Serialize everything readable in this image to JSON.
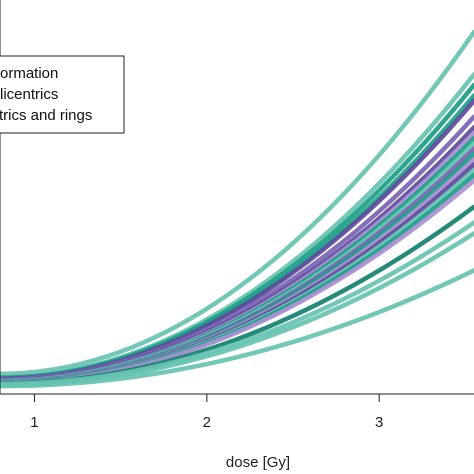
{
  "chart_data": {
    "type": "line",
    "xlabel": "dose [Gy]",
    "ylabel": "",
    "title": "",
    "xlim": [
      0.8,
      3.55
    ],
    "ylim": [
      0.95,
      2.55
    ],
    "x_ticks": [
      1,
      2,
      3
    ],
    "x_tick_labels": [
      "1",
      "2",
      "3"
    ],
    "grid": false,
    "legend": {
      "placement": "top-left",
      "entries": [
        {
          "label": "ormation",
          "color": "#26a69a"
        },
        {
          "label": "licentrics",
          "color": "#6a4fa0"
        },
        {
          "label": "trics and rings",
          "color": "#7fd1c3"
        }
      ]
    },
    "colors": {
      "teal_light": "#66c2b1",
      "teal": "#1a9e86",
      "teal_dark": "#12806e",
      "purple": "#5e4a9c",
      "purple_mid": "#7a63b4",
      "lavender": "#a98fd3"
    },
    "series": [
      {
        "color": "#66c2b1",
        "points": [
          [
            0.8,
            1.032
          ],
          [
            3.55,
            2.42
          ]
        ]
      },
      {
        "color": "#66c2b1",
        "points": [
          [
            0.8,
            1.019
          ],
          [
            3.55,
            2.248
          ]
        ]
      },
      {
        "color": "#1a9e86",
        "points": [
          [
            0.8,
            1.016
          ],
          [
            3.55,
            2.205
          ]
        ]
      },
      {
        "color": "#1a9e86",
        "points": [
          [
            0.8,
            1.014
          ],
          [
            3.55,
            2.162
          ]
        ]
      },
      {
        "color": "#5e4a9c",
        "points": [
          [
            0.8,
            1.012
          ],
          [
            3.55,
            2.14
          ]
        ]
      },
      {
        "color": "#7a63b4",
        "points": [
          [
            0.8,
            1.01
          ],
          [
            3.55,
            2.076
          ]
        ]
      },
      {
        "color": "#5e4a9c",
        "points": [
          [
            0.8,
            1.006
          ],
          [
            3.55,
            2.033
          ]
        ]
      },
      {
        "color": "#a98fd3",
        "points": [
          [
            0.8,
            1.004
          ],
          [
            3.55,
            2.011
          ]
        ]
      },
      {
        "color": "#1a9e86",
        "points": [
          [
            0.8,
            1.003
          ],
          [
            3.55,
            1.989
          ]
        ]
      },
      {
        "color": "#66c2b1",
        "points": [
          [
            0.8,
            1.002
          ],
          [
            3.55,
            1.968
          ]
        ]
      },
      {
        "color": "#7a63b4",
        "points": [
          [
            0.8,
            1.0
          ],
          [
            3.55,
            1.946
          ]
        ]
      },
      {
        "color": "#1a9e86",
        "points": [
          [
            0.8,
            0.999
          ],
          [
            3.55,
            1.925
          ]
        ]
      },
      {
        "color": "#a98fd3",
        "points": [
          [
            0.8,
            0.998
          ],
          [
            3.55,
            1.903
          ]
        ]
      },
      {
        "color": "#5e4a9c",
        "points": [
          [
            0.8,
            0.997
          ],
          [
            3.55,
            1.882
          ]
        ]
      },
      {
        "color": "#66c2b1",
        "points": [
          [
            0.8,
            0.996
          ],
          [
            3.55,
            1.86
          ]
        ]
      },
      {
        "color": "#1a9e86",
        "points": [
          [
            0.8,
            0.995
          ],
          [
            3.55,
            1.839
          ]
        ]
      },
      {
        "color": "#a98fd3",
        "points": [
          [
            0.8,
            0.994
          ],
          [
            3.55,
            1.817
          ]
        ]
      },
      {
        "color": "#12806e",
        "points": [
          [
            0.8,
            0.993
          ],
          [
            3.55,
            1.71
          ]
        ]
      },
      {
        "color": "#66c2b1",
        "points": [
          [
            0.8,
            0.991
          ],
          [
            3.55,
            1.646
          ]
        ]
      },
      {
        "color": "#66c2b1",
        "points": [
          [
            0.8,
            0.986
          ],
          [
            3.55,
            1.602
          ]
        ]
      },
      {
        "color": "#66c2b1",
        "points": [
          [
            0.8,
            0.982
          ],
          [
            3.55,
            1.452
          ]
        ]
      }
    ]
  }
}
